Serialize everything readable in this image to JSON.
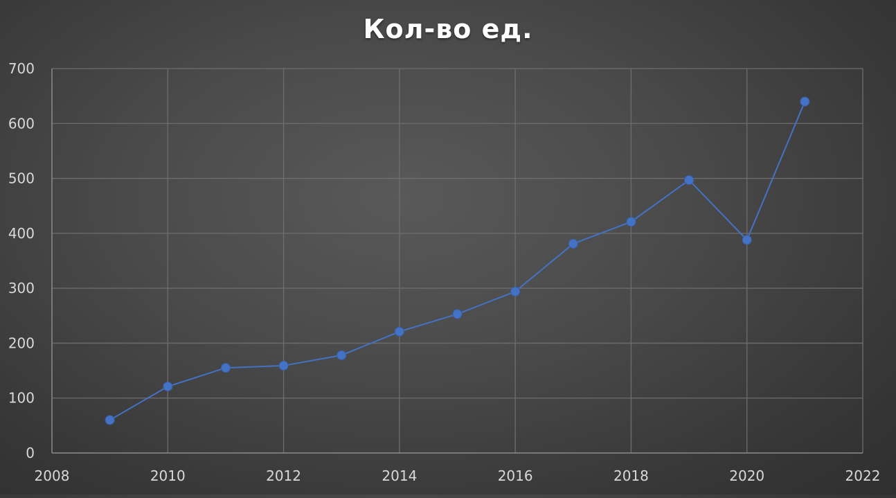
{
  "chart_data": {
    "type": "scatter",
    "title": "Кол-во ед.",
    "xlabel": "",
    "ylabel": "",
    "xlim": [
      2008,
      2022
    ],
    "ylim": [
      0,
      700
    ],
    "x_ticks": [
      2008,
      2010,
      2012,
      2014,
      2016,
      2018,
      2020,
      2022
    ],
    "y_ticks": [
      0,
      100,
      200,
      300,
      400,
      500,
      600,
      700
    ],
    "grid": true,
    "legend": "none",
    "series": [
      {
        "style": "lines-and-markers",
        "color": "#4472c4",
        "x": [
          2009,
          2010,
          2011,
          2012,
          2013,
          2014,
          2015,
          2016,
          2017,
          2018,
          2019,
          2020,
          2021
        ],
        "y": [
          60,
          121,
          155,
          159,
          178,
          221,
          253,
          294,
          381,
          421,
          497,
          388,
          640
        ]
      }
    ]
  },
  "colors": {
    "background": "#4a4a4a",
    "gridline": "#6e6e6e",
    "axis": "#8c8c8c",
    "text": "#d9d9d9",
    "title": "#ffffff"
  }
}
